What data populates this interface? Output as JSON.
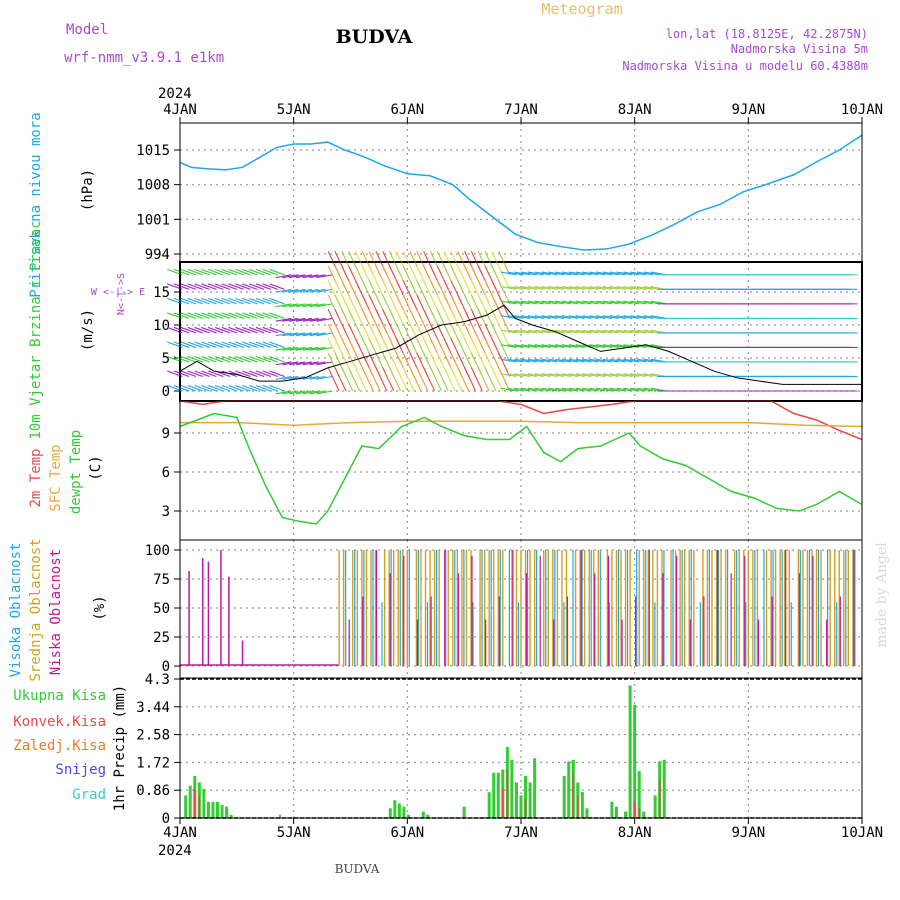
{
  "header": {
    "model_label": "Model",
    "model_name": "wrf-nmm_v3.9.1 e1km",
    "station_title": "BUDVA",
    "chart_kind": "Meteogram",
    "lonlat": "lon,lat (18.8125E, 42.2875N)",
    "altitude": "Nadmorska Visina 5m",
    "model_altitude": "Nadmorska Visina u modelu 60.4388m",
    "year": "2024",
    "footer_title": "BUDVA",
    "watermark": "made by Angel"
  },
  "colors": {
    "pressure": "#1ea7e8",
    "temp2m": "#e84a4a",
    "sfc_temp": "#e8a838",
    "dewpt": "#33cc33",
    "high_cloud": "#1ea7e8",
    "mid_cloud": "#d4a020",
    "low_cloud": "#c0189a",
    "total_precip": "#33cc33",
    "conv_precip": "#e84a4a",
    "freezing": "#f07830",
    "snow": "#4a4ae8",
    "hail": "#33cccc",
    "title_purple": "#a84ad0",
    "orange_title": "#e8c070"
  },
  "chart_data": {
    "type": "meteogram",
    "time_axis": {
      "start": "4JAN 2024",
      "end": "10JAN 2024",
      "tick_labels": [
        "4JAN",
        "5JAN",
        "6JAN",
        "7JAN",
        "8JAN",
        "9JAN",
        "10JAN"
      ],
      "bottom_tick_labels": [
        "4JAN",
        "5JAN",
        "6JAN",
        "7JAN",
        "8JAN",
        "9JAN",
        "10JAN"
      ]
    },
    "panels": [
      {
        "id": "pressure",
        "type": "line",
        "ylabel": "Pritisak na nivou mora",
        "unit": "(hPa)",
        "ylim": [
          994,
          1020
        ],
        "yticks": [
          "1015",
          "1008",
          "1001",
          "994"
        ],
        "series": [
          {
            "name": "Pritisak na nivou mora",
            "x_days": [
              0,
              0.1,
              0.25,
              0.4,
              0.55,
              0.7,
              0.85,
              1.0,
              1.15,
              1.3,
              1.45,
              1.6,
              1.8,
              2.0,
              2.2,
              2.4,
              2.55,
              2.75,
              2.95,
              3.15,
              3.35,
              3.55,
              3.75,
              3.95,
              4.15,
              4.35,
              4.55,
              4.75,
              4.95,
              5.15,
              5.4,
              5.6,
              5.8,
              6.0
            ],
            "values": [
              1012.5,
              1011.5,
              1011.2,
              1011.0,
              1011.5,
              1013.5,
              1015.5,
              1016.2,
              1016.2,
              1016.6,
              1015.0,
              1013.8,
              1011.8,
              1010.2,
              1009.8,
              1008.0,
              1005.0,
              1001.5,
              998.0,
              996.3,
              995.5,
              994.8,
              995.0,
              996.0,
              997.8,
              1000.0,
              1002.5,
              1004.0,
              1006.5,
              1008.0,
              1010.0,
              1012.6,
              1015.0,
              1018.0
            ]
          }
        ]
      },
      {
        "id": "wind",
        "type": "line+barbs",
        "ylabel": "10m Vjetar Brzina i Pravac",
        "unit": "(m/s)",
        "compass_label": "W <-|-> E",
        "compass_vertical": "N<-|->S",
        "ylim": [
          -1,
          19
        ],
        "yticks": [
          "15",
          "10",
          "5",
          "0"
        ],
        "series": [
          {
            "name": "Brzina",
            "x_days": [
              0,
              0.15,
              0.3,
              0.5,
              0.7,
              0.9,
              1.1,
              1.3,
              1.5,
              1.7,
              1.9,
              2.1,
              2.3,
              2.5,
              2.7,
              2.85,
              2.95,
              3.1,
              3.3,
              3.5,
              3.7,
              3.9,
              4.1,
              4.3,
              4.5,
              4.7,
              4.9,
              5.1,
              5.3,
              5.5,
              5.7,
              6.0
            ],
            "values": [
              3.0,
              4.5,
              3.0,
              2.5,
              1.5,
              1.5,
              2.0,
              3.5,
              4.5,
              5.5,
              6.5,
              8.5,
              10.0,
              10.5,
              11.5,
              13.0,
              11.0,
              10.0,
              9.0,
              7.5,
              6.0,
              6.5,
              7.0,
              6.0,
              4.5,
              3.0,
              2.0,
              1.5,
              1.0,
              1.0,
              1.0,
              1.0
            ]
          }
        ]
      },
      {
        "id": "temperature",
        "type": "line",
        "ylabel": "2m Temp",
        "ylabel2": "SFC Temp",
        "ylabel3": "dewpt Temp",
        "unit": "(C)",
        "ylim": [
          1.5,
          11.5
        ],
        "yticks": [
          "9",
          "6",
          "3"
        ],
        "series": [
          {
            "name": "2m Temp",
            "x_days": [
              0,
              0.2,
              0.4,
              0.6,
              0.8,
              1.0,
              1.2,
              1.4,
              1.6,
              1.8,
              2.0,
              2.2,
              2.4,
              2.6,
              2.8,
              3.0,
              3.2,
              3.4,
              3.6,
              3.8,
              4.0,
              4.2,
              4.4,
              4.6,
              4.8,
              5.0,
              5.2,
              5.4,
              5.6,
              5.8,
              6.0
            ],
            "values": [
              11.5,
              11.2,
              11.8,
              12.0,
              12.0,
              12.0,
              12.0,
              12.0,
              12.0,
              12.0,
              12.0,
              12.0,
              12.0,
              12.0,
              12.0,
              11.2,
              10.5,
              10.8,
              11.0,
              11.2,
              11.5,
              11.8,
              11.8,
              11.8,
              11.8,
              11.8,
              11.8,
              10.5,
              10.0,
              9.2,
              8.5
            ]
          },
          {
            "name": "SFC Temp",
            "x_days": [
              0,
              0.5,
              1.0,
              1.5,
              2.0,
              2.5,
              3.0,
              3.5,
              4.0,
              4.5,
              5.0,
              5.5,
              6.0
            ],
            "values": [
              9.8,
              9.8,
              9.6,
              9.8,
              9.9,
              9.9,
              9.9,
              9.8,
              9.8,
              9.8,
              9.8,
              9.6,
              9.5
            ]
          },
          {
            "name": "dewpt Temp",
            "x_days": [
              0,
              0.15,
              0.3,
              0.5,
              0.6,
              0.75,
              0.9,
              1.05,
              1.2,
              1.3,
              1.45,
              1.6,
              1.75,
              1.95,
              2.15,
              2.3,
              2.5,
              2.7,
              2.9,
              3.05,
              3.2,
              3.35,
              3.5,
              3.7,
              3.95,
              4.05,
              4.25,
              4.45,
              4.65,
              4.85,
              5.05,
              5.25,
              5.45,
              5.6,
              5.8,
              6.0
            ],
            "values": [
              9.5,
              10.0,
              10.5,
              10.2,
              8.0,
              5.0,
              2.5,
              2.2,
              2.0,
              3.0,
              5.5,
              8.0,
              7.8,
              9.5,
              10.2,
              9.5,
              8.8,
              8.5,
              8.5,
              9.5,
              7.5,
              6.8,
              7.8,
              8.0,
              9.0,
              8.0,
              7.0,
              6.5,
              5.5,
              4.5,
              4.0,
              3.2,
              3.0,
              3.5,
              4.5,
              3.5
            ]
          }
        ]
      },
      {
        "id": "clouds",
        "type": "bar",
        "ylabel": "Visoka Oblacnost",
        "ylabel2": "Srednja Oblacnost",
        "ylabel3": "Niska Oblacnost",
        "unit": "(%)",
        "ylim": [
          0,
          100
        ],
        "yticks": [
          "100",
          "75",
          "50",
          "25",
          "0"
        ]
      },
      {
        "id": "precip",
        "type": "bar",
        "ylabel": "1hr Precip (mm)",
        "legend": [
          "Ukupna Kisa",
          "Konvek.Kisa",
          "Zaledj.Kisa",
          "Snijeg",
          "Grad"
        ],
        "ylim": [
          0,
          4.3
        ],
        "yticks": [
          "4.3",
          "3.44",
          "2.58",
          "1.72",
          "0.86",
          "0"
        ],
        "series": [
          {
            "name": "Ukupna Kisa",
            "x_days": [
              0.05,
              0.09,
              0.13,
              0.17,
              0.21,
              0.25,
              0.29,
              0.33,
              0.37,
              0.41,
              0.45,
              1.85,
              1.89,
              1.93,
              1.97,
              2.01,
              2.14,
              2.18,
              2.5,
              2.72,
              2.76,
              2.8,
              2.84,
              2.88,
              2.92,
              2.96,
              3.0,
              3.04,
              3.08,
              3.12,
              3.38,
              3.42,
              3.46,
              3.5,
              3.54,
              3.58,
              3.8,
              3.84,
              3.92,
              3.96,
              4.0,
              4.04,
              4.08,
              4.18,
              4.22,
              4.26
            ],
            "values": [
              0.7,
              1.0,
              1.3,
              1.1,
              0.9,
              0.5,
              0.5,
              0.5,
              0.4,
              0.35,
              0.1,
              0.3,
              0.55,
              0.45,
              0.35,
              0.1,
              0.2,
              0.1,
              0.35,
              0.8,
              1.4,
              1.4,
              1.5,
              2.2,
              1.8,
              1.1,
              0.7,
              1.3,
              1.1,
              1.85,
              1.3,
              1.75,
              1.8,
              1.1,
              0.8,
              0.3,
              0.5,
              0.35,
              0.2,
              4.1,
              3.5,
              1.45,
              0.2,
              0.7,
              1.75,
              1.8
            ]
          },
          {
            "name": "Konvek.Kisa",
            "x_days": [
              0.13,
              0.17,
              0.88,
              2.84,
              2.88,
              3.04,
              3.46,
              3.5,
              4.0,
              4.04,
              4.22
            ],
            "values": [
              0.9,
              0.7,
              0.1,
              0.9,
              1.5,
              0.6,
              1.4,
              0.7,
              0.5,
              0.3,
              1.2
            ]
          }
        ]
      }
    ]
  }
}
